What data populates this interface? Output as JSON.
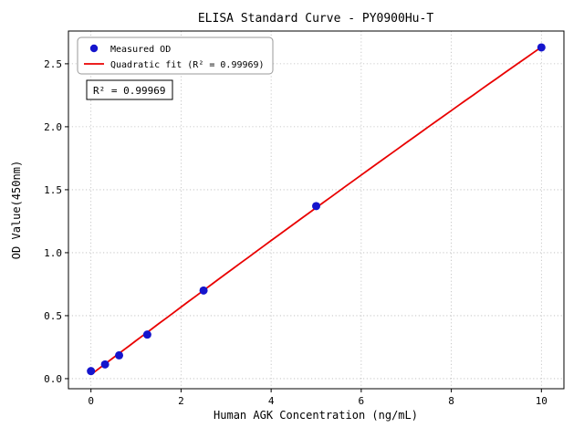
{
  "chart_data": {
    "type": "scatter",
    "title": "ELISA Standard Curve - PY0900Hu-T",
    "xlabel": "Human AGK Concentration (ng/mL)",
    "ylabel": "OD Value(450nm)",
    "xlim": [
      -0.5,
      10.5
    ],
    "ylim": [
      -0.08,
      2.76
    ],
    "x_ticks": [
      0,
      2,
      4,
      6,
      8,
      10
    ],
    "x_tick_labels": [
      "0",
      "2",
      "4",
      "6",
      "8",
      "10"
    ],
    "y_ticks": [
      0,
      0.5,
      1.0,
      1.5,
      2.0,
      2.5
    ],
    "y_tick_labels": [
      "0.0",
      "0.5",
      "1.0",
      "1.5",
      "2.0",
      "2.5"
    ],
    "grid": true,
    "legend_position": "upper-left",
    "colors": {
      "grid": "#bbbbbb",
      "frame": "#000000",
      "background": "#ffffff",
      "measured_points": "#1515cd",
      "fit_line": "#e90000",
      "legend_border": "#999999",
      "annotation_border": "#000000"
    },
    "series": [
      {
        "name": "Measured OD",
        "type": "scatter",
        "color": "#1515cd",
        "x": [
          0,
          0.313,
          0.625,
          1.25,
          2.5,
          5,
          10
        ],
        "y": [
          0.06,
          0.113,
          0.185,
          0.35,
          0.7,
          1.37,
          2.63
        ]
      },
      {
        "name": "Quadratic fit (R² = 0.99969)",
        "type": "quadratic-fit",
        "color": "#e90000"
      }
    ],
    "annotation": {
      "text": "R² = 0.99969"
    }
  }
}
